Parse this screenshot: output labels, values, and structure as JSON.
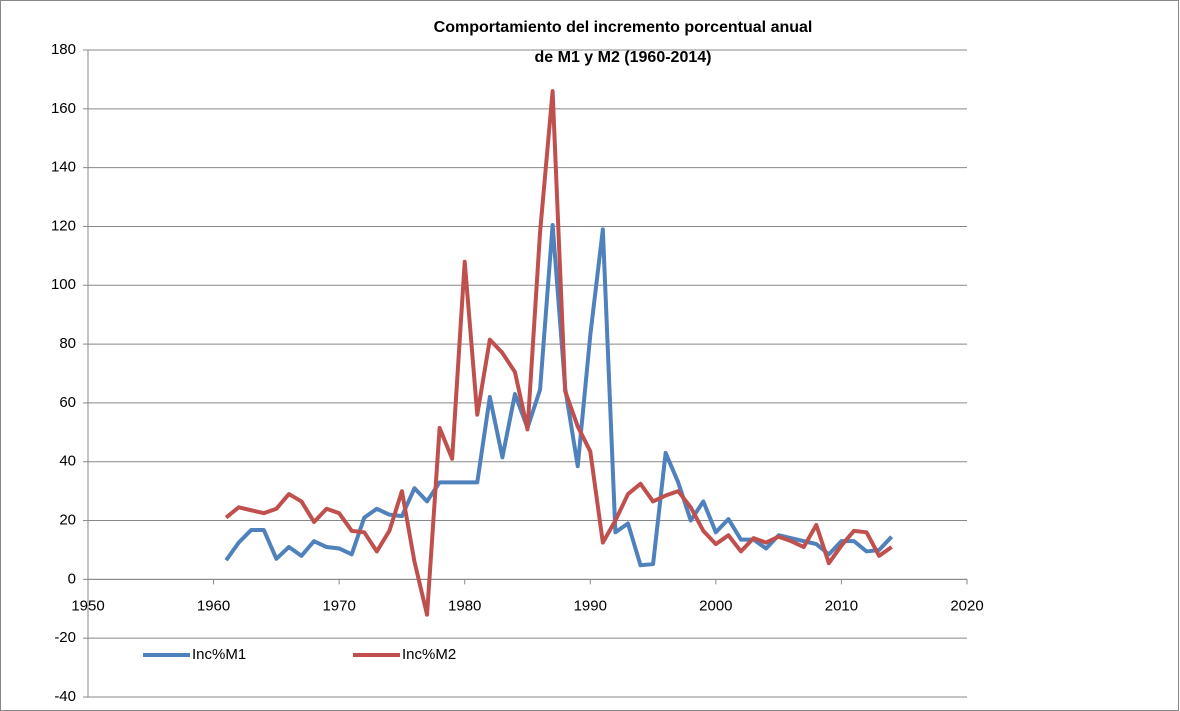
{
  "chart_data": {
    "type": "line",
    "title": [
      "Comportamiento del incremento porcentual anual",
      "de M1 y M2 (1960-2014)"
    ],
    "x": [
      1961,
      1962,
      1963,
      1964,
      1965,
      1966,
      1967,
      1968,
      1969,
      1970,
      1971,
      1972,
      1973,
      1974,
      1975,
      1976,
      1977,
      1978,
      1979,
      1980,
      1981,
      1982,
      1983,
      1984,
      1985,
      1986,
      1987,
      1988,
      1989,
      1990,
      1991,
      1992,
      1993,
      1994,
      1995,
      1996,
      1997,
      1998,
      1999,
      2000,
      2001,
      2002,
      2003,
      2004,
      2005,
      2006,
      2007,
      2008,
      2009,
      2010,
      2011,
      2012,
      2013,
      2014
    ],
    "series": [
      {
        "name": "Inc%M1",
        "color": "#4f81bd",
        "values": [
          6.5,
          12.5,
          16.8,
          16.8,
          7,
          11,
          8,
          13,
          11,
          10.5,
          8.5,
          21,
          24,
          22,
          21.5,
          31,
          26.5,
          33,
          33,
          33,
          33,
          62,
          41.5,
          63,
          51.5,
          64.5,
          120.5,
          65,
          38.5,
          83,
          119,
          16,
          19,
          4.8,
          5.2,
          43,
          33,
          20,
          26.5,
          16,
          20.5,
          13.5,
          13.5,
          10.5,
          15,
          14,
          13,
          12,
          8.5,
          13,
          13,
          9.5,
          10,
          14.5
        ]
      },
      {
        "name": "Inc%M2",
        "color": "#c0504d",
        "values": [
          21,
          24.5,
          23.5,
          22.5,
          24,
          29,
          26.5,
          19.5,
          24,
          22.5,
          16.5,
          16,
          9.5,
          16.5,
          30,
          6,
          -12,
          51.5,
          41,
          108,
          56,
          81.5,
          77,
          70.5,
          51,
          118,
          166,
          64,
          52,
          43.5,
          12.5,
          20,
          29,
          32.5,
          26.5,
          28.5,
          30,
          24.5,
          16.5,
          12,
          15,
          9.5,
          14,
          12.5,
          14.5,
          13,
          11,
          18.5,
          5.5,
          11.5,
          16.5,
          16,
          8,
          11
        ]
      }
    ],
    "xlim": [
      1950,
      2020
    ],
    "xticks": [
      1950,
      1960,
      1970,
      1980,
      1990,
      2000,
      2010,
      2020
    ],
    "ylim": [
      -40,
      180
    ],
    "yticks": [
      -40,
      -20,
      0,
      20,
      40,
      60,
      80,
      100,
      120,
      140,
      160,
      180
    ],
    "grid": true,
    "legend": "bottom-left"
  }
}
